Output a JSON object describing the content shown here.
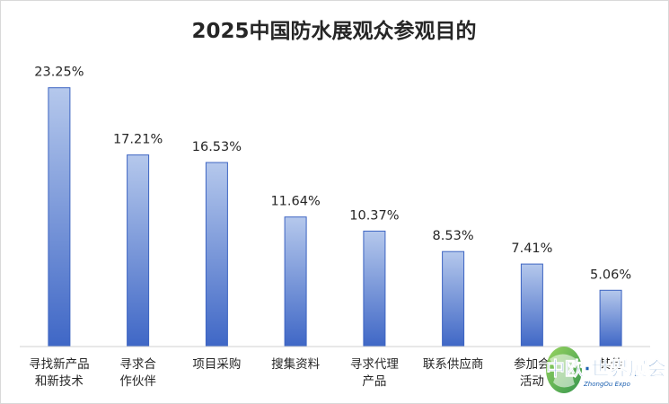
{
  "chart_data": {
    "type": "bar",
    "title": "2025中国防水展观众参观目的",
    "categories": [
      [
        "寻找新产品",
        "和新技术"
      ],
      [
        "寻求合",
        "作伙伴"
      ],
      [
        "项目采购"
      ],
      [
        "搜集资料"
      ],
      [
        "寻求代理",
        "产品"
      ],
      [
        "联系供应商"
      ],
      [
        "参加会",
        "活动"
      ],
      [
        "其他"
      ]
    ],
    "values": [
      23.25,
      17.21,
      16.53,
      11.64,
      10.37,
      8.53,
      7.41,
      5.06
    ],
    "value_labels": [
      "23.25%",
      "17.21%",
      "16.53%",
      "11.64%",
      "10.37%",
      "8.53%",
      "7.41%",
      "5.06%"
    ],
    "ylim": [
      0,
      25
    ],
    "grid": false,
    "legend": "none",
    "colors": {
      "bar_top": "#b5c8ec",
      "bar_bottom": "#3f67c6",
      "bar_border": "#3d64c2",
      "axis": "#d0d0d0",
      "text": "#262626"
    }
  },
  "watermark": {
    "text": "中欧·世界展会",
    "sub": "ZhongOu Expo",
    "icon": "globe-leaf-icon"
  }
}
